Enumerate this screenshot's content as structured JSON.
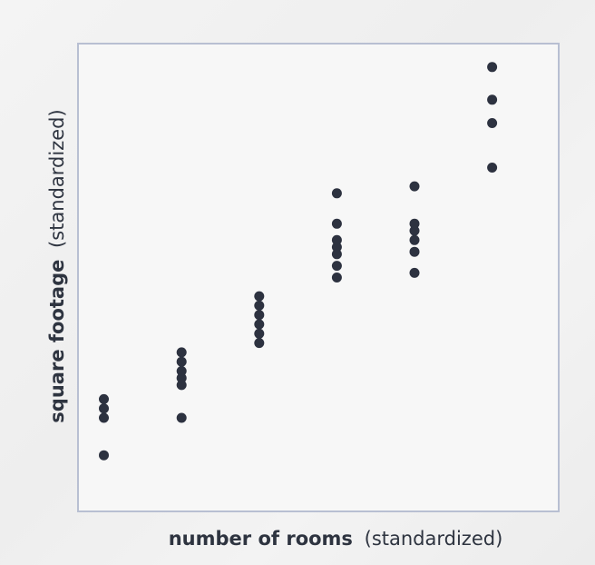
{
  "chart_data": {
    "type": "scatter",
    "title": "",
    "xlabel": {
      "main": "number of rooms",
      "qualifier": "(standardized)"
    },
    "ylabel": {
      "main": "square footage",
      "qualifier": "(standardized)"
    },
    "xlim": [
      0,
      6.5
    ],
    "ylim": [
      0,
      10
    ],
    "grid": false,
    "legend": "none",
    "colors": {
      "point": "#2d3240",
      "frame": "#b8bfd2",
      "plot_background": "#f7f7f7",
      "text": "#2e3440"
    },
    "series": [
      {
        "points": [
          {
            "x": 0.35,
            "y": 1.2
          },
          {
            "x": 0.35,
            "y": 2.0
          },
          {
            "x": 0.35,
            "y": 2.2
          },
          {
            "x": 0.35,
            "y": 2.4
          },
          {
            "x": 1.4,
            "y": 2.0
          },
          {
            "x": 1.4,
            "y": 2.7
          },
          {
            "x": 1.4,
            "y": 2.85
          },
          {
            "x": 1.4,
            "y": 3.0
          },
          {
            "x": 1.4,
            "y": 3.2
          },
          {
            "x": 1.4,
            "y": 3.4
          },
          {
            "x": 2.45,
            "y": 3.6
          },
          {
            "x": 2.45,
            "y": 3.8
          },
          {
            "x": 2.45,
            "y": 4.0
          },
          {
            "x": 2.45,
            "y": 4.2
          },
          {
            "x": 2.45,
            "y": 4.4
          },
          {
            "x": 2.45,
            "y": 4.6
          },
          {
            "x": 3.5,
            "y": 5.0
          },
          {
            "x": 3.5,
            "y": 5.25
          },
          {
            "x": 3.5,
            "y": 5.5
          },
          {
            "x": 3.5,
            "y": 5.65
          },
          {
            "x": 3.5,
            "y": 5.8
          },
          {
            "x": 3.5,
            "y": 6.15
          },
          {
            "x": 3.5,
            "y": 6.8
          },
          {
            "x": 4.55,
            "y": 5.1
          },
          {
            "x": 4.55,
            "y": 5.55
          },
          {
            "x": 4.55,
            "y": 5.8
          },
          {
            "x": 4.55,
            "y": 6.0
          },
          {
            "x": 4.55,
            "y": 6.15
          },
          {
            "x": 4.55,
            "y": 6.95
          },
          {
            "x": 5.6,
            "y": 7.35
          },
          {
            "x": 5.6,
            "y": 8.3
          },
          {
            "x": 5.6,
            "y": 8.8
          },
          {
            "x": 5.6,
            "y": 9.5
          }
        ]
      }
    ]
  }
}
